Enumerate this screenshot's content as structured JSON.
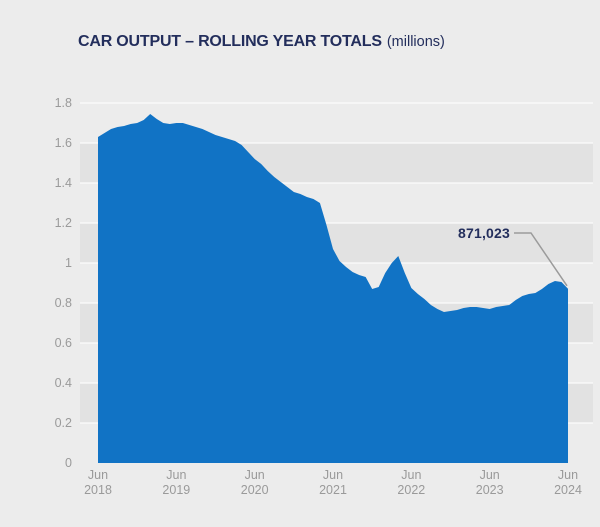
{
  "title": {
    "main": "CAR OUTPUT – ROLLING YEAR TOTALS",
    "suffix": "(millions)"
  },
  "annotation": {
    "value_label": "871,023"
  },
  "colors": {
    "page_bg": "#ececec",
    "band_stripe": "#e2e2e2",
    "gridline": "#ffffff",
    "area_fill": "#1173c5",
    "axis_text": "#9a9a9a",
    "title_text": "#232e5c",
    "callout_line": "#9b9b9b"
  },
  "chart_data": {
    "type": "area",
    "title": "CAR OUTPUT – ROLLING YEAR TOTALS (millions)",
    "unit": "millions",
    "ylim": [
      0,
      1.8
    ],
    "grid": "zebra-bands-every-0.2",
    "y_tick_values": [
      0,
      0.2,
      0.4,
      0.6,
      0.8,
      1,
      1.2,
      1.4,
      1.6,
      1.8
    ],
    "y_tick_labels": [
      "0",
      "0.2",
      "0.4",
      "0.6",
      "0.8",
      "1",
      "1.2",
      "1.4",
      "1.6",
      "1.8"
    ],
    "x_tick_labels": [
      [
        "Jun",
        "2018"
      ],
      [
        "Jun",
        "2019"
      ],
      [
        "Jun",
        "2020"
      ],
      [
        "Jun",
        "2021"
      ],
      [
        "Jun",
        "2022"
      ],
      [
        "Jun",
        "2023"
      ],
      [
        "Jun",
        "2024"
      ]
    ],
    "points_per_year": 12,
    "series": [
      {
        "name": "Car output rolling year total (millions)",
        "values": [
          1.63,
          1.65,
          1.67,
          1.68,
          1.685,
          1.695,
          1.7,
          1.715,
          1.745,
          1.72,
          1.7,
          1.695,
          1.7,
          1.7,
          1.69,
          1.68,
          1.67,
          1.655,
          1.64,
          1.63,
          1.62,
          1.61,
          1.59,
          1.555,
          1.52,
          1.495,
          1.46,
          1.43,
          1.405,
          1.38,
          1.355,
          1.345,
          1.33,
          1.32,
          1.3,
          1.19,
          1.07,
          1.01,
          0.98,
          0.955,
          0.94,
          0.93,
          0.87,
          0.88,
          0.95,
          1.0,
          1.035,
          0.95,
          0.875,
          0.845,
          0.82,
          0.79,
          0.77,
          0.755,
          0.76,
          0.765,
          0.775,
          0.78,
          0.78,
          0.775,
          0.77,
          0.78,
          0.785,
          0.79,
          0.815,
          0.835,
          0.845,
          0.85,
          0.87,
          0.895,
          0.91,
          0.905,
          0.871
        ]
      }
    ],
    "end_annotation": {
      "text": "871,023",
      "value": 0.871,
      "x_label": "Jun 2024"
    },
    "legend": "none"
  }
}
